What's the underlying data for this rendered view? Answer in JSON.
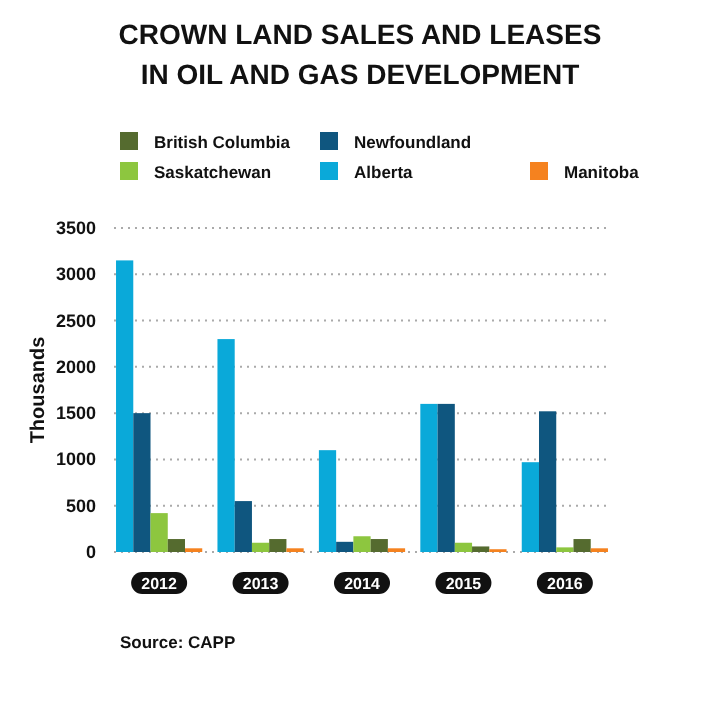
{
  "chart_data": {
    "type": "bar",
    "title": "CROWN LAND SALES AND LEASES\nIN OIL AND GAS DEVELOPMENT",
    "ylabel": "Thousands",
    "categories": [
      "2012",
      "2013",
      "2014",
      "2015",
      "2016"
    ],
    "series": [
      {
        "name": "Alberta",
        "color": "#0aa9d9",
        "values": [
          3150,
          2300,
          1100,
          1600,
          970
        ]
      },
      {
        "name": "Newfoundland",
        "color": "#0f567f",
        "values": [
          1500,
          550,
          110,
          1600,
          1520
        ]
      },
      {
        "name": "Saskatchewan",
        "color": "#8dc63f",
        "values": [
          420,
          100,
          170,
          100,
          50
        ]
      },
      {
        "name": "British Columbia",
        "color": "#556b2f",
        "values": [
          140,
          140,
          140,
          60,
          140
        ]
      },
      {
        "name": "Manitoba",
        "color": "#f5821f",
        "values": [
          40,
          40,
          40,
          30,
          40
        ]
      }
    ],
    "ylim": [
      0,
      3500
    ],
    "yticks": [
      0,
      500,
      1000,
      1500,
      2000,
      2500,
      3000,
      3500
    ],
    "grid": "y",
    "legend": "top",
    "annotations": [
      "Source: CAPP"
    ]
  }
}
